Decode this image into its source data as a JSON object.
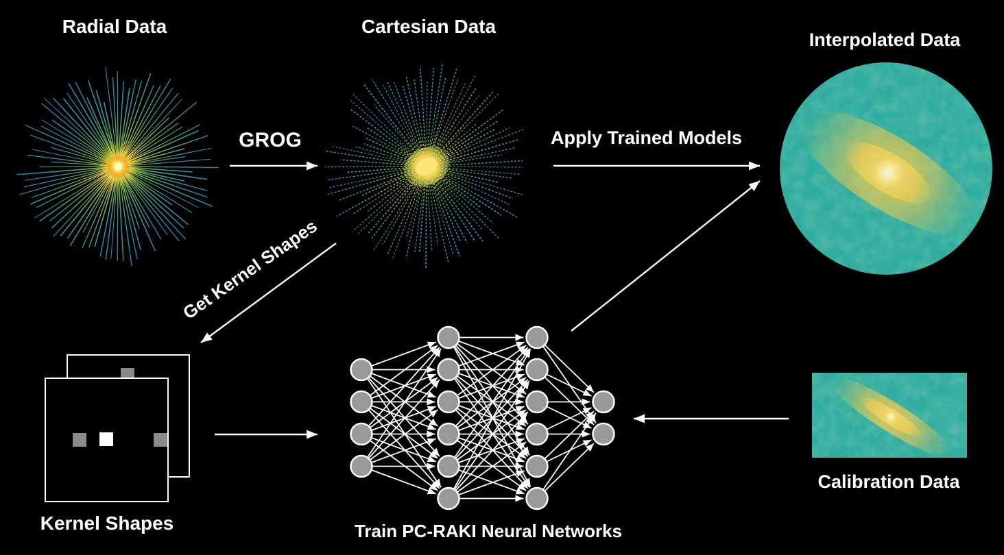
{
  "diagram": {
    "title_radial": "Radial Data",
    "title_cartesian": "Cartesian Data",
    "title_interpolated": "Interpolated Data",
    "label_grog": "GROG",
    "label_apply": "Apply Trained Models",
    "label_get_kernel": "Get Kernel Shapes",
    "label_kernel_shapes": "Kernel Shapes",
    "label_train": "Train PC-RAKI Neural Networks",
    "label_calibration": "Calibration Data"
  },
  "nn": {
    "layers": [
      4,
      6,
      6,
      2
    ]
  },
  "colors": {
    "background": "#000000",
    "arrow": "#ffffff",
    "node_fill": "#999999",
    "node_stroke": "#ffffff",
    "kernel_gray": "#8a8a8a",
    "kernel_white": "#ffffff",
    "ray_teal": "#1f7f9e",
    "ray_cyan": "#2aa1c4",
    "center_yellow": "#ffd447",
    "map_teal": "#2fae9f",
    "map_yellow": "#eec94e"
  }
}
